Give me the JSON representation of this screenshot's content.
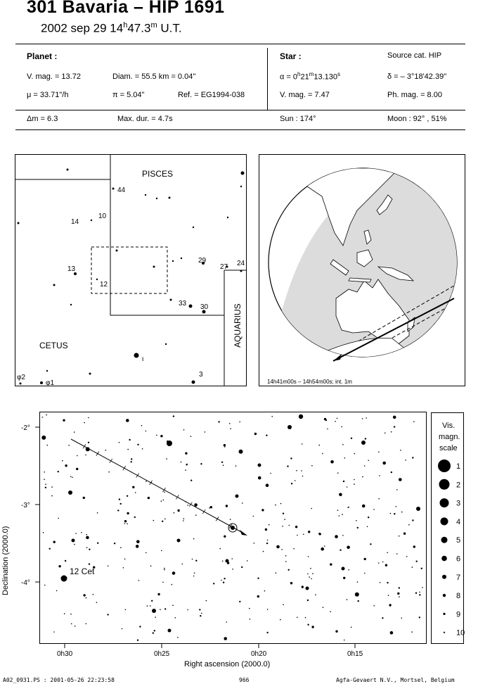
{
  "header": {
    "title": "301 Bavaria  –  HIP 1691",
    "date": "2002 sep 29  14",
    "time_h_sup": "h",
    "time_min": "47.3",
    "time_m_sup": "m",
    "time_ut": " U.T."
  },
  "planet": {
    "heading": "Planet :",
    "vmag": "V. mag. = 13.72",
    "diam": "Diam. = 55.5 km = 0.04\"",
    "mu": "μ = 33.71\"/h",
    "pi": "π = 5.04\"",
    "ref": "Ref. = EG1994-038",
    "dm": "Δm = 6.3",
    "maxdur": "Max. dur. = 4.7s"
  },
  "star": {
    "heading": "Star :",
    "source": "Source cat.  HIP",
    "alpha_pre": "α = 0",
    "alpha_h": "h",
    "alpha_m_val": "21",
    "alpha_m": "m",
    "alpha_s": "13.130",
    "alpha_s_sup": "s",
    "delta": "δ = – 3°18'42.39\"",
    "vmag": "V. mag. = 7.47",
    "phmag": "Ph. mag. = 8.00",
    "sun": "Sun : 174°",
    "moon": "Moon :  92° , 51%"
  },
  "finder": {
    "constellations": [
      "PISCES",
      "CETUS",
      "AQUARIUS"
    ],
    "star_labels": [
      "44",
      "10",
      "14",
      "13",
      "12",
      "29",
      "27",
      "24",
      "33",
      "30",
      "3",
      "ι",
      "φ2",
      "φ1"
    ]
  },
  "globe": {
    "caption": "14h41m00s – 14h54m00s; int.  1m"
  },
  "chart": {
    "xlabel": "Right ascension (2000.0)",
    "ylabel": "Declination (2000.0)",
    "xticks": [
      "0h30",
      "0h25",
      "0h20",
      "0h15"
    ],
    "yticks": [
      "-2°",
      "-3°",
      "-4°"
    ],
    "star_label": "12 Cet"
  },
  "legend": {
    "title_lines": [
      "Vis.",
      "magn.",
      "scale"
    ],
    "mags": [
      "1",
      "2",
      "3",
      "4",
      "5",
      "6",
      "7",
      "8",
      "9",
      "10"
    ]
  },
  "footer": {
    "left": "A02_0931.PS : 2001-05-26 22:23:58",
    "center": "966",
    "right": "Agfa-Gevaert N.V., Mortsel, Belgium"
  }
}
